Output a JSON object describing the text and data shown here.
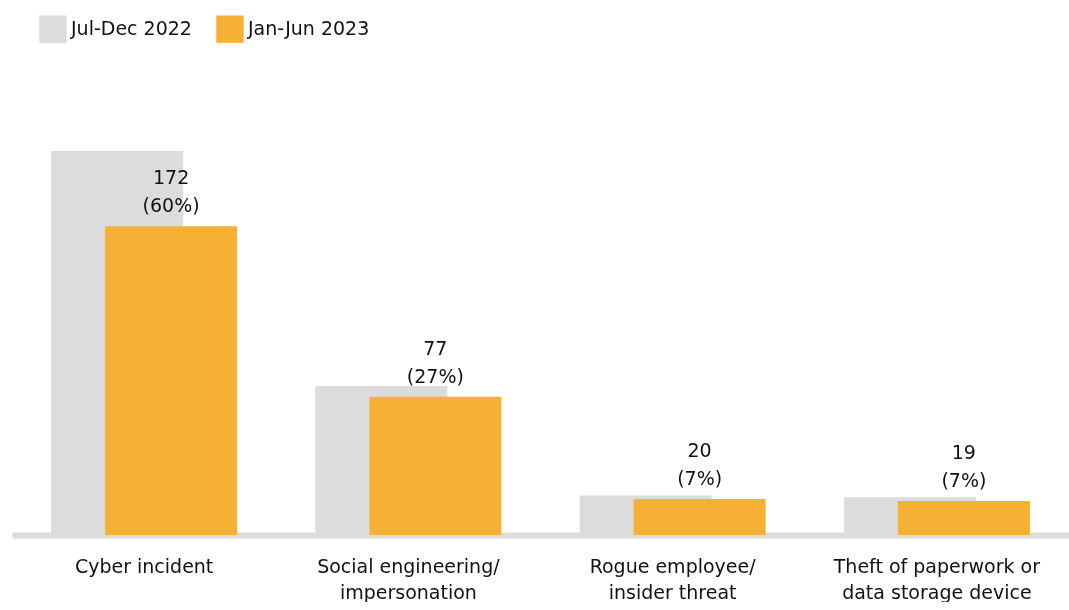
{
  "chart_data": {
    "type": "bar",
    "categories": [
      "Cyber incident",
      "Social engineering/\nimpersonation",
      "Rogue employee/\ninsider threat",
      "Theft of paperwork or\ndata storage device"
    ],
    "series": [
      {
        "name": "Jul-Dec 2022",
        "color": "#dcdcdc",
        "values": [
          214,
          83,
          22,
          21
        ]
      },
      {
        "name": "Jan-Jun 2023",
        "color": "#f6b034",
        "values": [
          172,
          77,
          20,
          19
        ],
        "value_labels": [
          "172\n(60%)",
          "77\n(27%)",
          "20\n(7%)",
          "19\n(7%)"
        ]
      }
    ],
    "legend": "top left",
    "grid": false
  }
}
